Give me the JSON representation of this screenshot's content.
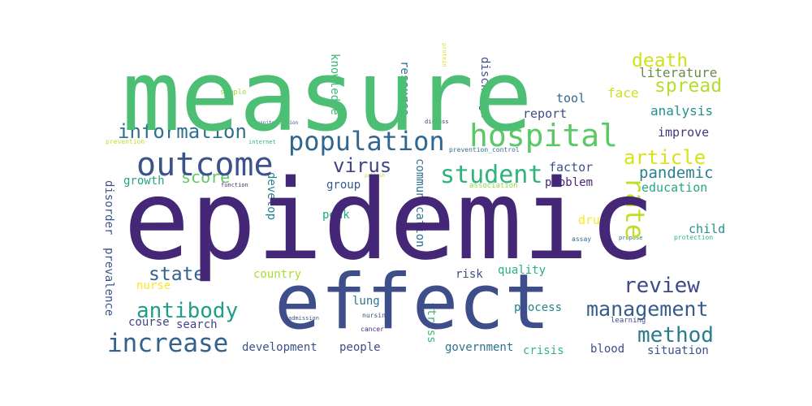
{
  "word_cloud": {
    "words": [
      {
        "text": "measure",
        "color": "#4cbf74"
      },
      {
        "text": "epidemic",
        "color": "#452777"
      },
      {
        "text": "effect",
        "color": "#3d4e8a"
      },
      {
        "text": "hospital",
        "color": "#5ac864"
      },
      {
        "text": "outcome",
        "color": "#3b528b"
      },
      {
        "text": "population",
        "color": "#31668e"
      },
      {
        "text": "information",
        "color": "#2d708e"
      },
      {
        "text": "student",
        "color": "#2eb37c"
      },
      {
        "text": "virus",
        "color": "#414487"
      },
      {
        "text": "antibody",
        "color": "#1f9e89"
      },
      {
        "text": "increase",
        "color": "#33638d"
      },
      {
        "text": "review",
        "color": "#3e4a89"
      },
      {
        "text": "management",
        "color": "#365c8d"
      },
      {
        "text": "method",
        "color": "#287c8e"
      },
      {
        "text": "state",
        "color": "#33638d"
      },
      {
        "text": "death",
        "color": "#d0e11c"
      },
      {
        "text": "spread",
        "color": "#b5de2b"
      },
      {
        "text": "article",
        "color": "#d8e219"
      },
      {
        "text": "pandemic",
        "color": "#26828e"
      },
      {
        "text": "rate",
        "color": "#bddf26"
      },
      {
        "text": "score",
        "color": "#5ec962"
      },
      {
        "text": "literature",
        "color": "#6a8a4a"
      },
      {
        "text": "face",
        "color": "#cde11d"
      },
      {
        "text": "analysis",
        "color": "#21918c"
      },
      {
        "text": "tool",
        "color": "#31688e"
      },
      {
        "text": "report",
        "color": "#3e4c8a"
      },
      {
        "text": "improve",
        "color": "#463480"
      },
      {
        "text": "education",
        "color": "#22a884"
      },
      {
        "text": "factor",
        "color": "#3b528b"
      },
      {
        "text": "problem",
        "color": "#482576"
      },
      {
        "text": "growth",
        "color": "#21a685"
      },
      {
        "text": "group",
        "color": "#38588c"
      },
      {
        "text": "develop",
        "color": "#26828e"
      },
      {
        "text": "communication",
        "color": "#2c728e"
      },
      {
        "text": "knowledge",
        "color": "#3aba76"
      },
      {
        "text": "resource",
        "color": "#2d708e"
      },
      {
        "text": "discharge",
        "color": "#3e4c8a"
      },
      {
        "text": "disorder",
        "color": "#3b528b"
      },
      {
        "text": "prevalence",
        "color": "#3b528b"
      },
      {
        "text": "peak",
        "color": "#22a884"
      },
      {
        "text": "drug",
        "color": "#fde725"
      },
      {
        "text": "child",
        "color": "#21918c"
      },
      {
        "text": "country",
        "color": "#aadc32"
      },
      {
        "text": "nurse",
        "color": "#fde725"
      },
      {
        "text": "quality",
        "color": "#29af7f"
      },
      {
        "text": "risk",
        "color": "#3e4a89"
      },
      {
        "text": "lung",
        "color": "#2c728e"
      },
      {
        "text": "process",
        "color": "#26828e"
      },
      {
        "text": "course",
        "color": "#414487"
      },
      {
        "text": "search",
        "color": "#414487"
      },
      {
        "text": "development",
        "color": "#3b528b"
      },
      {
        "text": "people",
        "color": "#3e4c8a"
      },
      {
        "text": "stress",
        "color": "#37b878"
      },
      {
        "text": "government",
        "color": "#2c728e"
      },
      {
        "text": "crisis",
        "color": "#35b779"
      },
      {
        "text": "blood",
        "color": "#3e4c8a"
      },
      {
        "text": "situation",
        "color": "#3b528b"
      },
      {
        "text": "sample",
        "color": "#a5db36"
      },
      {
        "text": "protein",
        "color": "#d8e219"
      },
      {
        "text": "hospitalization",
        "color": "#3e4a89"
      },
      {
        "text": "discuss",
        "color": "#46327e"
      },
      {
        "text": "prevention",
        "color": "#bddf26"
      },
      {
        "text": "internet",
        "color": "#2eb37c"
      },
      {
        "text": "prevention_control",
        "color": "#2d708e"
      },
      {
        "text": "publish",
        "color": "#b5de2b"
      },
      {
        "text": "function",
        "color": "#482878"
      },
      {
        "text": "association",
        "color": "#8fd744"
      },
      {
        "text": "assay",
        "color": "#31688e"
      },
      {
        "text": "propose",
        "color": "#2c728e"
      },
      {
        "text": "protection",
        "color": "#2eb37c"
      },
      {
        "text": "admission",
        "color": "#3b528b"
      },
      {
        "text": "nursing",
        "color": "#3b528b"
      },
      {
        "text": "cancer",
        "color": "#482878"
      },
      {
        "text": "learning",
        "color": "#3e4a89"
      }
    ]
  }
}
